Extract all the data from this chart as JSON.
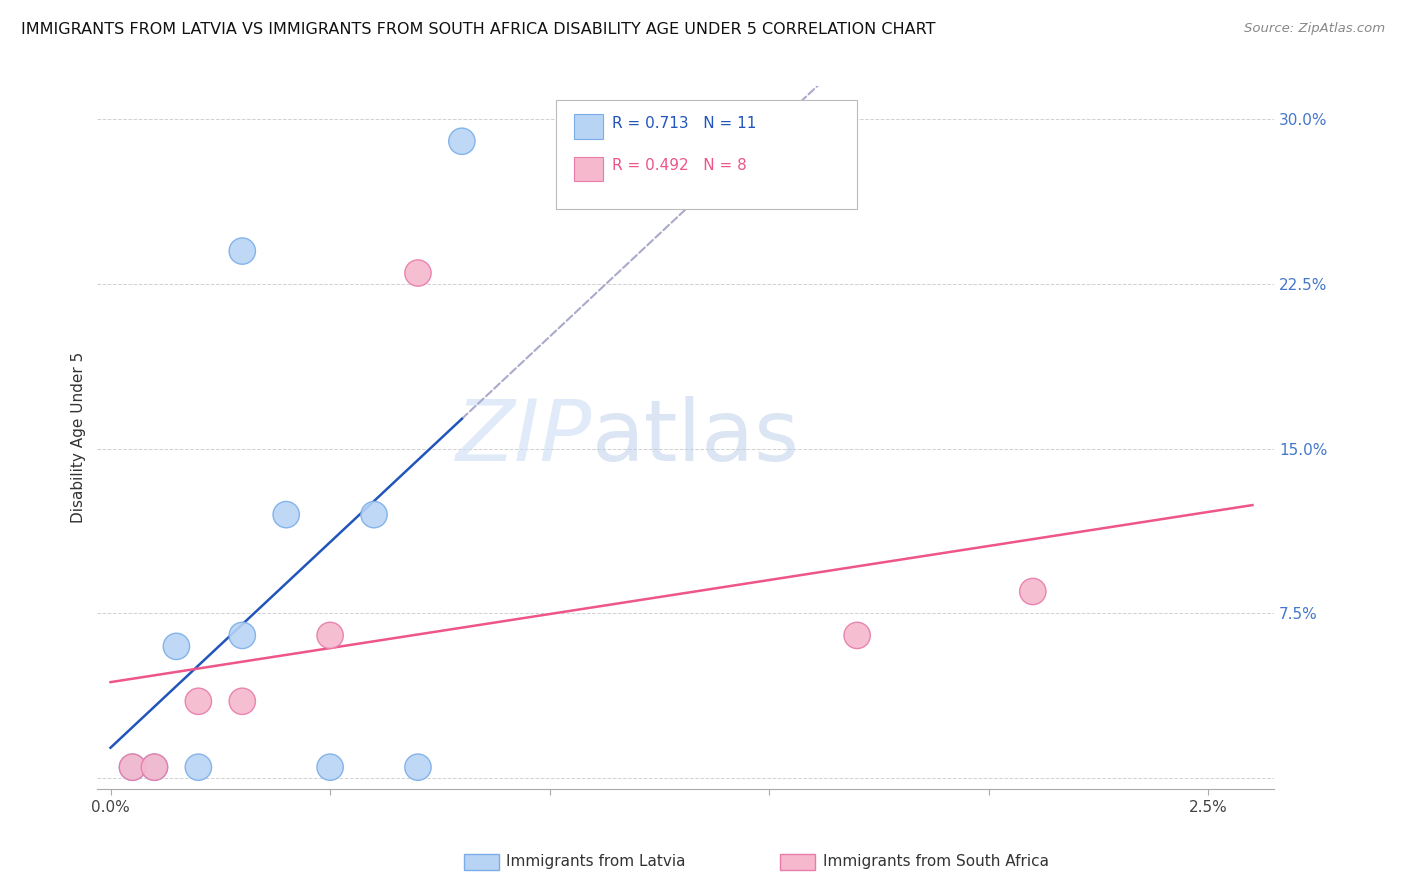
{
  "title": "IMMIGRANTS FROM LATVIA VS IMMIGRANTS FROM SOUTH AFRICA DISABILITY AGE UNDER 5 CORRELATION CHART",
  "source": "Source: ZipAtlas.com",
  "ylabel": "Disability Age Under 5",
  "y_ticks": [
    0.0,
    0.075,
    0.15,
    0.225,
    0.3
  ],
  "y_tick_labels": [
    "",
    "7.5%",
    "15.0%",
    "22.5%",
    "30.0%"
  ],
  "x_ticks": [
    0.0,
    0.005,
    0.01,
    0.015,
    0.02,
    0.025
  ],
  "x_tick_labels": [
    "0.0%",
    "",
    "",
    "",
    "",
    "2.5%"
  ],
  "latvia_x": [
    0.0005,
    0.001,
    0.0015,
    0.002,
    0.003,
    0.003,
    0.004,
    0.005,
    0.006,
    0.007,
    0.008
  ],
  "latvia_y": [
    0.005,
    0.005,
    0.06,
    0.005,
    0.065,
    0.24,
    0.12,
    0.005,
    0.12,
    0.005,
    0.29
  ],
  "sa_x": [
    0.0005,
    0.001,
    0.002,
    0.003,
    0.005,
    0.007,
    0.017,
    0.021
  ],
  "sa_y": [
    0.005,
    0.005,
    0.035,
    0.035,
    0.065,
    0.23,
    0.065,
    0.085
  ],
  "latvia_color": "#b8d4f5",
  "latvia_edge_color": "#7baee8",
  "sa_color": "#f5b8cc",
  "sa_edge_color": "#e87baa",
  "trend_latvia_color": "#2255bb",
  "trend_sa_color": "#ee5588",
  "trend_extend_color": "#aaaacc",
  "r_latvia": "0.713",
  "n_latvia": "11",
  "r_sa": "0.492",
  "n_sa": "8",
  "legend_label_latvia": "Immigrants from Latvia",
  "legend_label_sa": "Immigrants from South Africa",
  "watermark_zip": "ZIP",
  "watermark_atlas": "atlas",
  "background_color": "#ffffff",
  "xlim_min": -0.0003,
  "xlim_max": 0.0265,
  "ylim_min": -0.005,
  "ylim_max": 0.315
}
